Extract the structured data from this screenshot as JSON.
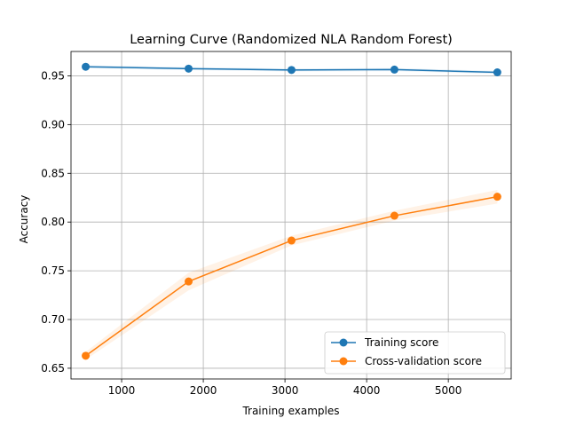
{
  "chart_data": {
    "type": "line",
    "title": "Learning Curve (Randomized NLA Random Forest)",
    "xlabel": "Training examples",
    "ylabel": "Accuracy",
    "xlim": [
      380,
      5770
    ],
    "ylim": [
      0.639,
      0.975
    ],
    "x_ticks": [
      1000,
      2000,
      3000,
      4000,
      5000
    ],
    "y_ticks": [
      0.65,
      0.7,
      0.75,
      0.8,
      0.85,
      0.9,
      0.95
    ],
    "grid": true,
    "legend_position": "lower-right",
    "x": [
      560,
      1820,
      3080,
      4340,
      5600
    ],
    "series": [
      {
        "name": "Training score",
        "color": "#1f77b4",
        "values": [
          0.9593,
          0.9574,
          0.956,
          0.9564,
          0.9536
        ],
        "band": [
          0.0015,
          0.0015,
          0.0015,
          0.0015,
          0.0015
        ]
      },
      {
        "name": "Cross-validation score",
        "color": "#ff7f0e",
        "values": [
          0.6628,
          0.739,
          0.781,
          0.8065,
          0.826
        ],
        "band": [
          0.004,
          0.009,
          0.005,
          0.005,
          0.007
        ]
      }
    ]
  }
}
